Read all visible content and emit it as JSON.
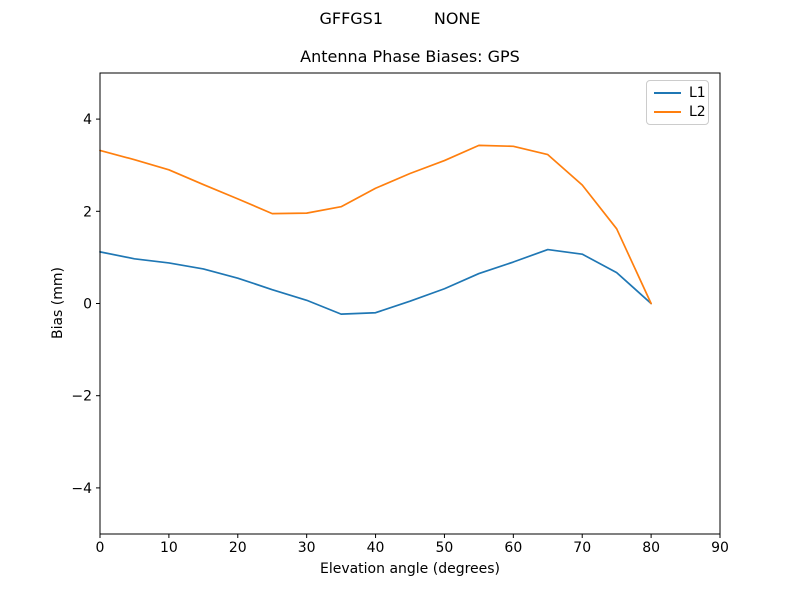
{
  "figure": {
    "suptitle": "GFFGS1          NONE",
    "background": "#ffffff",
    "text_color": "#000000",
    "spine_color": "#000000",
    "legend_border_color": "#cccccc"
  },
  "chart_data": {
    "type": "line",
    "title": "Antenna Phase Biases: GPS",
    "xlabel": "Elevation angle (degrees)",
    "ylabel": "Bias (mm)",
    "xlim": [
      0,
      90
    ],
    "ylim": [
      -5,
      5
    ],
    "x_ticks": [
      0,
      10,
      20,
      30,
      40,
      50,
      60,
      70,
      80,
      90
    ],
    "y_ticks": [
      -4,
      -2,
      0,
      2,
      4
    ],
    "grid": false,
    "legend_position": "upper right",
    "x": [
      0,
      5,
      10,
      15,
      20,
      25,
      30,
      35,
      40,
      45,
      50,
      55,
      60,
      65,
      70,
      75,
      80
    ],
    "series": [
      {
        "name": "L1",
        "color": "#1f77b4",
        "values": [
          1.12,
          0.97,
          0.88,
          0.75,
          0.55,
          0.3,
          0.07,
          -0.23,
          -0.2,
          0.05,
          0.32,
          0.65,
          0.9,
          1.17,
          1.07,
          0.67,
          0.0
        ]
      },
      {
        "name": "L2",
        "color": "#ff7f0e",
        "values": [
          3.32,
          3.12,
          2.9,
          2.58,
          2.27,
          1.95,
          1.96,
          2.1,
          2.5,
          2.82,
          3.1,
          3.43,
          3.41,
          3.23,
          2.57,
          1.62,
          0.0
        ]
      }
    ]
  }
}
